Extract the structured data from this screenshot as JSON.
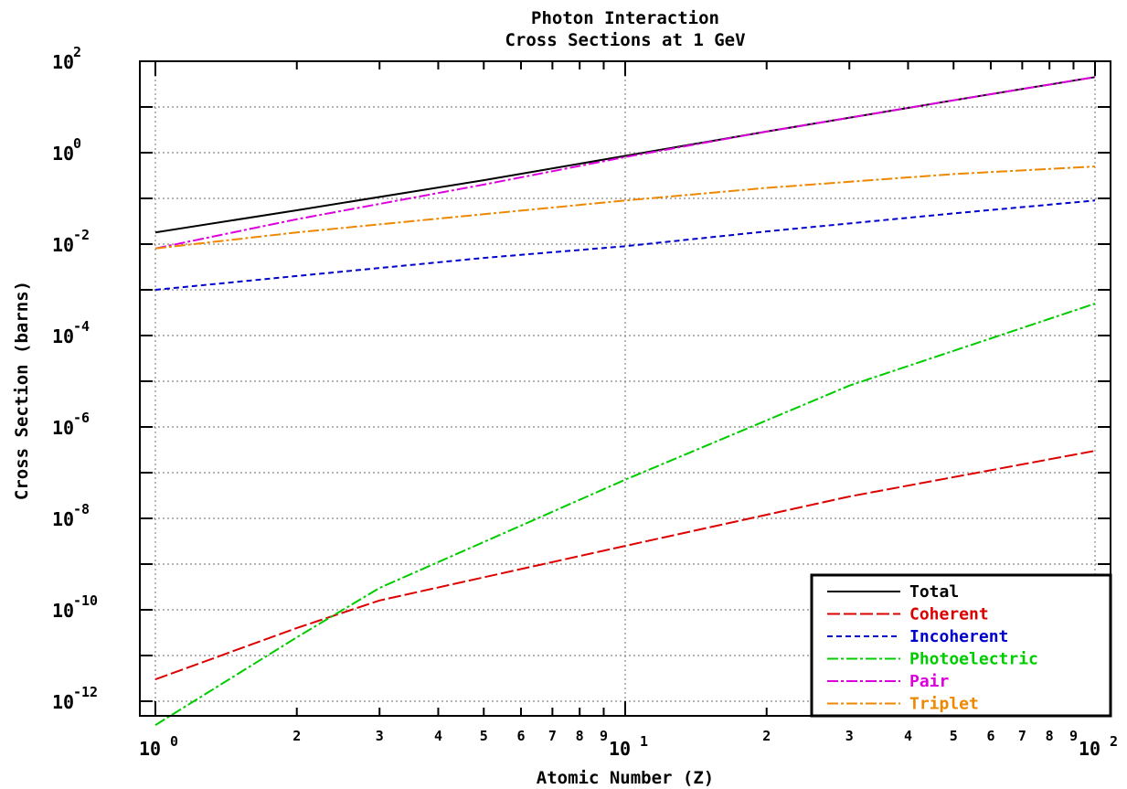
{
  "chart_data": {
    "type": "line",
    "title": [
      "Photon Interaction",
      "Cross Sections at 1 GeV"
    ],
    "xlabel": "Atomic Number (Z)",
    "ylabel": "Cross Section (barns)",
    "x_scale": "log",
    "y_scale": "log",
    "xlim": [
      1,
      100
    ],
    "ylim": [
      1e-13,
      100
    ],
    "x_major_ticks": [
      {
        "value": 1,
        "base": "10",
        "exp": "0"
      },
      {
        "value": 10,
        "base": "10",
        "exp": "1"
      },
      {
        "value": 100,
        "base": "10",
        "exp": "2"
      }
    ],
    "x_minor_ticks": [
      {
        "value": 2,
        "label": "2"
      },
      {
        "value": 3,
        "label": "3"
      },
      {
        "value": 4,
        "label": "4"
      },
      {
        "value": 5,
        "label": "5"
      },
      {
        "value": 6,
        "label": "6"
      },
      {
        "value": 7,
        "label": "7"
      },
      {
        "value": 8,
        "label": "8"
      },
      {
        "value": 9,
        "label": "9"
      },
      {
        "value": 20,
        "label": "2"
      },
      {
        "value": 30,
        "label": "3"
      },
      {
        "value": 40,
        "label": "4"
      },
      {
        "value": 50,
        "label": "5"
      },
      {
        "value": 60,
        "label": "6"
      },
      {
        "value": 70,
        "label": "7"
      },
      {
        "value": 80,
        "label": "8"
      },
      {
        "value": 90,
        "label": "9"
      }
    ],
    "y_ticks": [
      {
        "value": 100,
        "base": "10",
        "exp": "2"
      },
      {
        "value": 1,
        "base": "10",
        "exp": "0"
      },
      {
        "value": 0.01,
        "base": "10",
        "exp": "-2"
      },
      {
        "value": 0.0001,
        "base": "10",
        "exp": "-4"
      },
      {
        "value": 1e-06,
        "base": "10",
        "exp": "-6"
      },
      {
        "value": 1e-08,
        "base": "10",
        "exp": "-8"
      },
      {
        "value": 1e-10,
        "base": "10",
        "exp": "-10"
      },
      {
        "value": 1e-12,
        "base": "10",
        "exp": "-12"
      }
    ],
    "grid": true,
    "legend_position": "bottom-right",
    "series": [
      {
        "name": "Total",
        "color": "#000000",
        "dash": "solid",
        "x": [
          1,
          2,
          5,
          10,
          20,
          50,
          100
        ],
        "y": [
          0.018,
          0.055,
          0.25,
          0.85,
          2.9,
          14,
          45
        ]
      },
      {
        "name": "Coherent",
        "color": "#dd0000",
        "dash": "longdash",
        "x": [
          1,
          2,
          3,
          10,
          30,
          100
        ],
        "y": [
          3e-12,
          4e-11,
          1.6e-10,
          2.5e-09,
          3e-08,
          3e-07
        ]
      },
      {
        "name": "Incoherent",
        "color": "#0000cc",
        "dash": "dash",
        "x": [
          1,
          2,
          5,
          10,
          20,
          50,
          100
        ],
        "y": [
          0.001,
          0.002,
          0.005,
          0.009,
          0.019,
          0.047,
          0.09
        ]
      },
      {
        "name": "Photoelectric",
        "color": "#00cc00",
        "dash": "dashdot",
        "x": [
          1,
          2,
          3,
          10,
          30,
          100
        ],
        "y": [
          3e-13,
          2.5e-11,
          3e-10,
          7e-08,
          8e-06,
          0.0005
        ]
      },
      {
        "name": "Pair",
        "color": "#dd00dd",
        "dash": "dashdot",
        "x": [
          1,
          2,
          5,
          10,
          20,
          50,
          100
        ],
        "y": [
          0.008,
          0.035,
          0.2,
          0.8,
          2.9,
          14,
          45
        ]
      },
      {
        "name": "Triplet",
        "color": "#ee8800",
        "dash": "dashdot",
        "x": [
          1,
          2,
          5,
          10,
          20,
          50,
          100
        ],
        "y": [
          0.008,
          0.018,
          0.045,
          0.09,
          0.17,
          0.34,
          0.5
        ]
      }
    ]
  }
}
